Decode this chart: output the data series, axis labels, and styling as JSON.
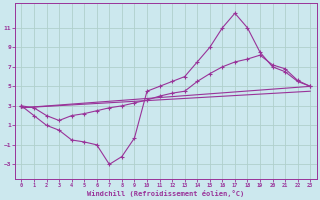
{
  "xlabel": "Windchill (Refroidissement éolien,°C)",
  "background_color": "#cce8ee",
  "grid_color": "#b0d0cc",
  "line_color": "#993399",
  "xlim": [
    -0.5,
    23.5
  ],
  "ylim": [
    -4.5,
    13.5
  ],
  "xticks": [
    0,
    1,
    2,
    3,
    4,
    5,
    6,
    7,
    8,
    9,
    10,
    11,
    12,
    13,
    14,
    15,
    16,
    17,
    18,
    19,
    20,
    21,
    22,
    23
  ],
  "yticks": [
    -3,
    -1,
    1,
    3,
    5,
    7,
    9,
    11
  ],
  "line_zigzag": {
    "x": [
      0,
      1,
      2,
      3,
      4,
      5,
      6,
      7,
      8,
      9,
      10,
      11,
      12,
      13,
      14,
      15,
      16,
      17,
      18,
      19,
      20,
      21,
      22,
      23
    ],
    "y": [
      3,
      2,
      1,
      0.5,
      -0.5,
      -0.7,
      -1.0,
      -3.0,
      -2.2,
      -0.3,
      4.5,
      5,
      5.5,
      6,
      7.5,
      9,
      11,
      12.5,
      11,
      8.5,
      7,
      6.5,
      5.5,
      5
    ]
  },
  "line_upper": {
    "x": [
      0,
      1,
      2,
      3,
      4,
      5,
      6,
      7,
      8,
      9,
      10,
      11,
      12,
      13,
      14,
      15,
      16,
      17,
      18,
      19,
      20,
      21,
      22,
      23
    ],
    "y": [
      3,
      2.8,
      2.0,
      1.5,
      2,
      2.2,
      2.5,
      2.8,
      3.0,
      3.3,
      3.6,
      4.0,
      4.3,
      4.5,
      5.5,
      6.3,
      7.0,
      7.5,
      7.8,
      8.2,
      7.2,
      6.8,
      5.6,
      5
    ]
  },
  "line_reg1": {
    "x": [
      0,
      23
    ],
    "y": [
      2.8,
      5.0
    ]
  },
  "line_reg2": {
    "x": [
      0,
      23
    ],
    "y": [
      2.8,
      4.5
    ]
  }
}
